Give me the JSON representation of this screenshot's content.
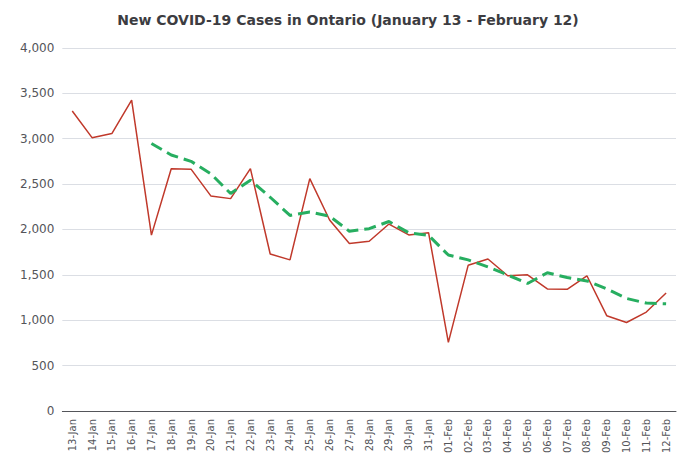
{
  "chart_data": {
    "type": "line",
    "title": "New COVID-19 Cases in Ontario (January 13 - February 12)",
    "categories": [
      "13-Jan",
      "14-Jan",
      "15-Jan",
      "16-Jan",
      "17-Jan",
      "18-Jan",
      "19-Jan",
      "20-Jan",
      "21-Jan",
      "22-Jan",
      "23-Jan",
      "24-Jan",
      "25-Jan",
      "26-Jan",
      "27-Jan",
      "28-Jan",
      "29-Jan",
      "30-Jan",
      "31-Jan",
      "01-Feb",
      "02-Feb",
      "03-Feb",
      "04-Feb",
      "05-Feb",
      "06-Feb",
      "07-Feb",
      "08-Feb",
      "09-Feb",
      "10-Feb",
      "11-Feb",
      "12-Feb"
    ],
    "series": [
      {
        "color": "#c0392b",
        "line_style": "solid",
        "values": [
          3305,
          3012,
          3057,
          3426,
          1938,
          2670,
          2665,
          2370,
          2340,
          2670,
          1730,
          1665,
          2560,
          2105,
          1845,
          1870,
          2060,
          1940,
          1965,
          756,
          1605,
          1675,
          1490,
          1500,
          1345,
          1340,
          1490,
          1050,
          975,
          1090,
          1300
        ]
      },
      {
        "color": "#27ae60",
        "line_style": "dashed",
        "values": [
          null,
          null,
          null,
          null,
          2947.6,
          2820.6,
          2751.2,
          2613.8,
          2396.6,
          2543,
          2355,
          2155,
          2193,
          2146,
          1981,
          2009,
          2088,
          1964,
          1936,
          1718.2,
          1665.2,
          1588.2,
          1498.2,
          1405.2,
          1523,
          1470,
          1433,
          1345,
          1240,
          1189,
          1181
        ]
      }
    ],
    "ylim": [
      0,
      4000
    ],
    "yticks": [
      0,
      500,
      {
        "value": 1000,
        "label": "1,000"
      },
      {
        "value": 1500,
        "label": "1,500"
      },
      {
        "value": 2000,
        "label": "2,000"
      },
      {
        "value": 2500,
        "label": "2,500"
      },
      {
        "value": 3000,
        "label": "3,000"
      },
      {
        "value": 3500,
        "label": "3,500"
      },
      {
        "value": 4000,
        "label": "4,000"
      }
    ],
    "grid": true
  }
}
